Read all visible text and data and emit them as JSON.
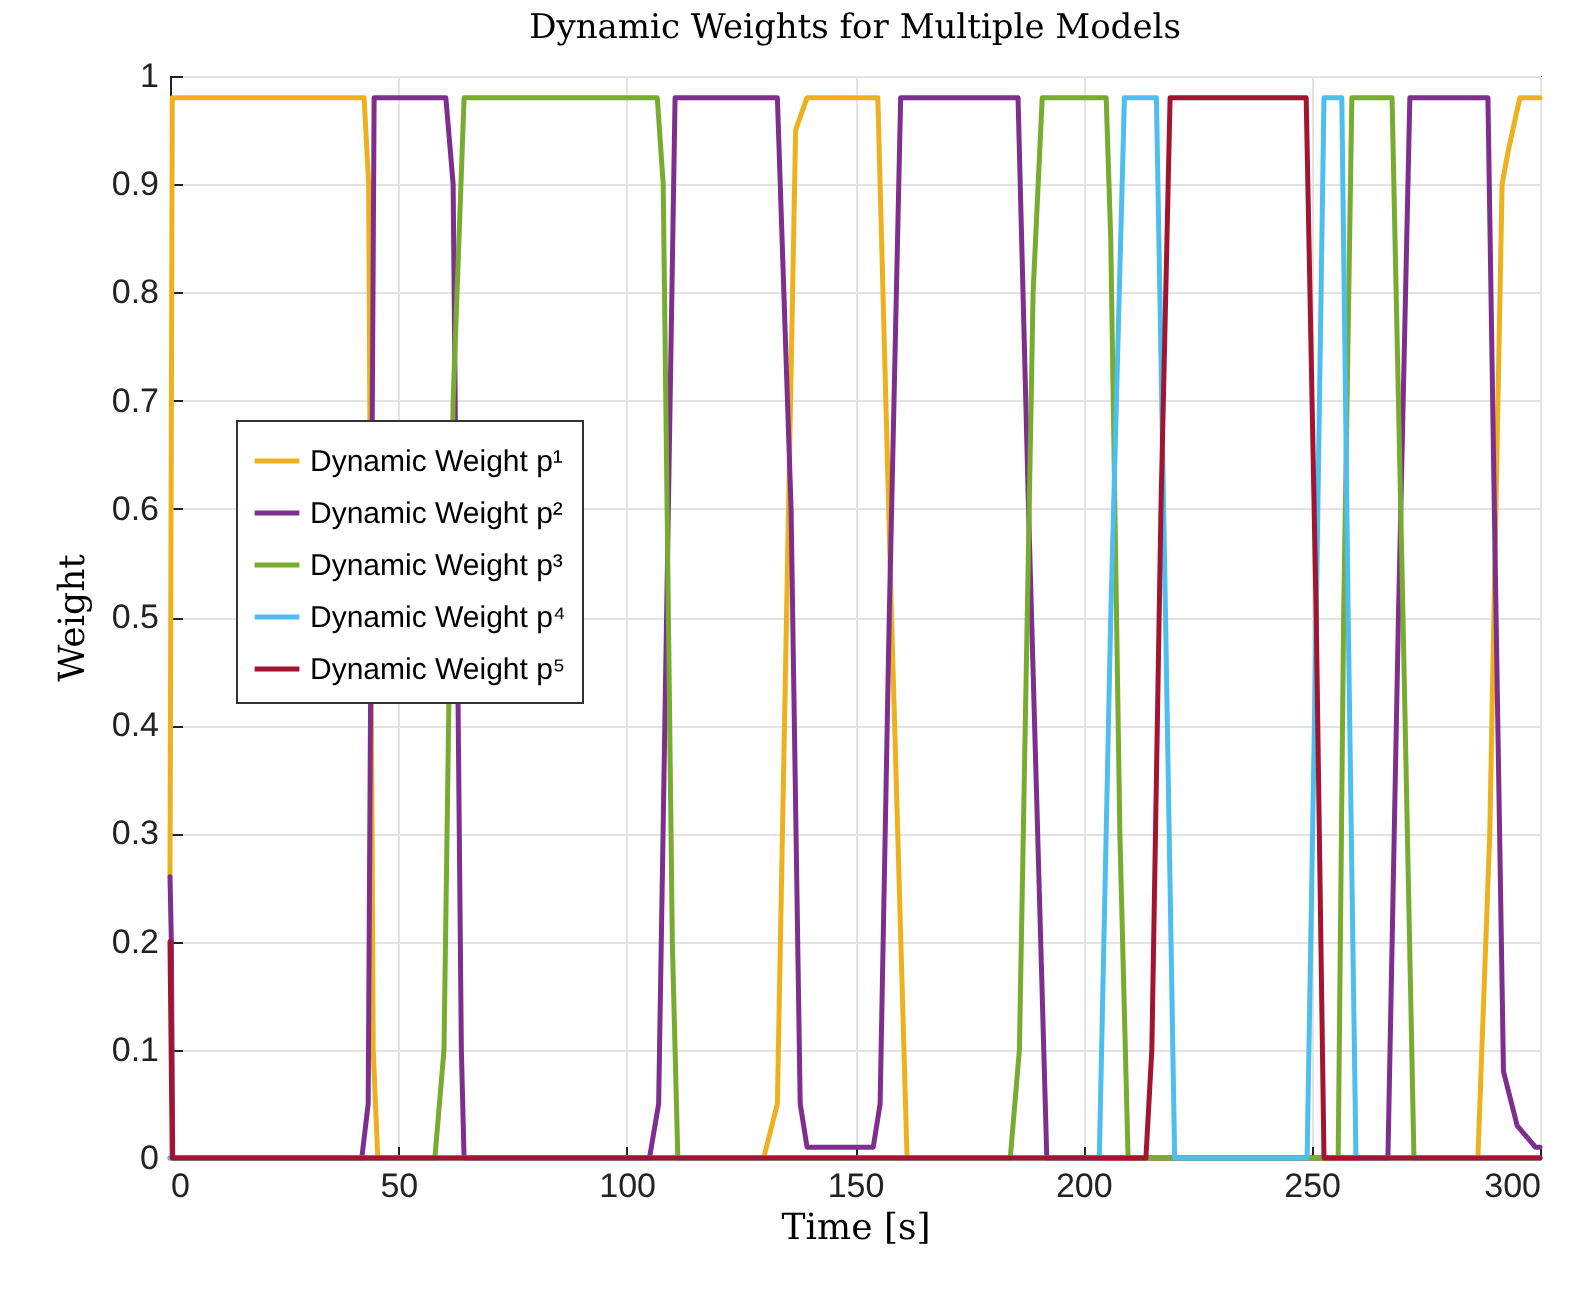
{
  "chart_data": {
    "type": "line",
    "title": "Dynamic Weights for Multiple Models",
    "xlabel": "Time [s]",
    "ylabel": "Weight",
    "xlim": [
      0,
      300
    ],
    "xticks": [
      0,
      50,
      100,
      150,
      200,
      250,
      300
    ],
    "ylim": [
      0,
      1
    ],
    "yticks": [
      0,
      0.1,
      0.2,
      0.3,
      0.4,
      0.5,
      0.6,
      0.7,
      0.8,
      0.9,
      1
    ],
    "grid": true,
    "legend": "left",
    "line_style": "solid",
    "marker": "none",
    "series": [
      {
        "name": "Dynamic Weight p¹",
        "color": "#edb120",
        "x": [
          0,
          0.5,
          42.5,
          43.5,
          44.5,
          45.5,
          130,
          133,
          135,
          137,
          139.5,
          155,
          158,
          161.4,
          286.4,
          289,
          291.7,
          293,
          295.6,
          300
        ],
        "values": [
          0.26,
          0.98,
          0.98,
          0.9,
          0.1,
          0,
          0,
          0.05,
          0.5,
          0.95,
          0.98,
          0.98,
          0.5,
          0,
          0,
          0.3,
          0.9,
          0.93,
          0.98,
          0.98
        ]
      },
      {
        "name": "Dynamic Weight p²",
        "color": "#7e2f8e",
        "x": [
          0,
          0.3,
          0.6,
          42,
          43.4,
          44.7,
          60.4,
          62,
          63.8,
          64.4,
          105,
          107,
          110.6,
          133,
          136,
          138,
          139.5,
          154,
          155.5,
          157.5,
          160,
          185.7,
          188,
          192,
          266.7,
          269,
          271.5,
          288.6,
          290,
          292,
          295,
          299,
          300
        ],
        "values": [
          0.26,
          0.2,
          0,
          0,
          0.05,
          0.98,
          0.98,
          0.9,
          0.1,
          0,
          0,
          0.05,
          0.98,
          0.98,
          0.6,
          0.05,
          0.01,
          0.01,
          0.05,
          0.5,
          0.98,
          0.98,
          0.6,
          0,
          0,
          0.5,
          0.98,
          0.98,
          0.6,
          0.08,
          0.03,
          0.01,
          0.01
        ]
      },
      {
        "name": "Dynamic Weight p³",
        "color": "#77ac30",
        "x": [
          0,
          58,
          60,
          62,
          64.4,
          106.7,
          108,
          110,
          111.2,
          184,
          186,
          189,
          191,
          205,
          206,
          208,
          209.8,
          255.8,
          257,
          258.8,
          267.6,
          270,
          272.4,
          300
        ],
        "values": [
          0,
          0,
          0.1,
          0.7,
          0.98,
          0.98,
          0.9,
          0.2,
          0,
          0,
          0.1,
          0.8,
          0.98,
          0.98,
          0.85,
          0.3,
          0,
          0,
          0.5,
          0.98,
          0.98,
          0.5,
          0,
          0
        ]
      },
      {
        "name": "Dynamic Weight p⁴",
        "color": "#4dbeee",
        "x": [
          0,
          203.5,
          206,
          209,
          216,
          218,
          220,
          249,
          251,
          252.7,
          256.6,
          258,
          259.7,
          300
        ],
        "values": [
          0,
          0,
          0.5,
          0.98,
          0.98,
          0.5,
          0,
          0,
          0.5,
          0.98,
          0.98,
          0.5,
          0,
          0
        ]
      },
      {
        "name": "Dynamic Weight p⁵",
        "color": "#a2142f",
        "x": [
          0,
          0.5,
          213.7,
          215,
          217,
          219,
          248.8,
          251,
          252.7,
          300
        ],
        "values": [
          0.2,
          0,
          0,
          0.1,
          0.6,
          0.98,
          0.98,
          0.5,
          0,
          0
        ]
      }
    ]
  }
}
